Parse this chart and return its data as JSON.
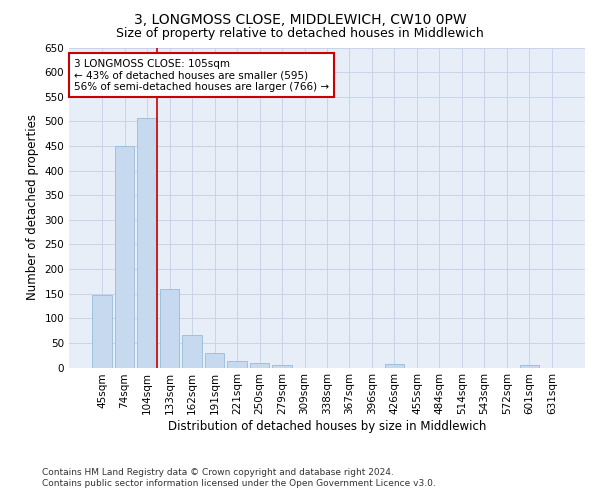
{
  "title": "3, LONGMOSS CLOSE, MIDDLEWICH, CW10 0PW",
  "subtitle": "Size of property relative to detached houses in Middlewich",
  "xlabel": "Distribution of detached houses by size in Middlewich",
  "ylabel": "Number of detached properties",
  "categories": [
    "45sqm",
    "74sqm",
    "104sqm",
    "133sqm",
    "162sqm",
    "191sqm",
    "221sqm",
    "250sqm",
    "279sqm",
    "309sqm",
    "338sqm",
    "367sqm",
    "396sqm",
    "426sqm",
    "455sqm",
    "484sqm",
    "514sqm",
    "543sqm",
    "572sqm",
    "601sqm",
    "631sqm"
  ],
  "values": [
    147,
    450,
    507,
    159,
    67,
    30,
    14,
    9,
    5,
    0,
    0,
    0,
    0,
    7,
    0,
    0,
    0,
    0,
    0,
    5,
    0
  ],
  "bar_color": "#c6d9ee",
  "bar_edge_color": "#8ab4d4",
  "vline_color": "#cc0000",
  "annotation_text": "3 LONGMOSS CLOSE: 105sqm\n← 43% of detached houses are smaller (595)\n56% of semi-detached houses are larger (766) →",
  "annotation_box_color": "#ffffff",
  "annotation_box_edge": "#cc0000",
  "ylim": [
    0,
    650
  ],
  "yticks": [
    0,
    50,
    100,
    150,
    200,
    250,
    300,
    350,
    400,
    450,
    500,
    550,
    600,
    650
  ],
  "grid_color": "#c8d4e8",
  "background_color": "#e8eef8",
  "footer": "Contains HM Land Registry data © Crown copyright and database right 2024.\nContains public sector information licensed under the Open Government Licence v3.0.",
  "title_fontsize": 10,
  "subtitle_fontsize": 9,
  "axis_label_fontsize": 8.5,
  "tick_fontsize": 7.5,
  "annotation_fontsize": 7.5,
  "footer_fontsize": 6.5
}
